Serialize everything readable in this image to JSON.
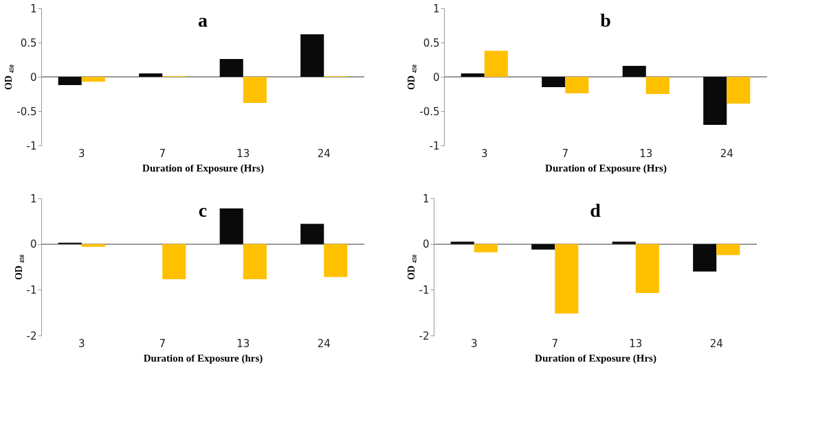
{
  "chart_data": [
    {
      "type": "bar",
      "title": "a",
      "xlabel": "Duration of Exposure (Hrs)",
      "ylabel": "OD ₄₅₀",
      "categories": [
        "3",
        "7",
        "13",
        "24"
      ],
      "ylim": [
        -1,
        1
      ],
      "yticks": [
        -1,
        -0.5,
        0,
        0.5,
        1
      ],
      "grid": false,
      "legend": false,
      "ref_lines": [
        {
          "axis": "y",
          "value": 0,
          "color": "#999999"
        }
      ],
      "series": [
        {
          "color": "#0a0a0a",
          "values": [
            -0.12,
            0.05,
            0.26,
            0.62
          ]
        },
        {
          "color": "#ffc000",
          "values": [
            -0.07,
            0.01,
            -0.38,
            0.01
          ]
        }
      ]
    },
    {
      "type": "bar",
      "title": "b",
      "xlabel": "Duration of Exposure (Hrs)",
      "ylabel": "OD ₄₅₀",
      "categories": [
        "3",
        "7",
        "13",
        "24"
      ],
      "ylim": [
        -1,
        1
      ],
      "yticks": [
        -1,
        -0.5,
        0,
        0.5,
        1
      ],
      "grid": false,
      "legend": false,
      "ref_lines": [
        {
          "axis": "y",
          "value": 0,
          "color": "#999999"
        }
      ],
      "series": [
        {
          "color": "#0a0a0a",
          "values": [
            0.05,
            -0.15,
            0.16,
            -0.7
          ]
        },
        {
          "color": "#ffc000",
          "values": [
            0.38,
            -0.24,
            -0.25,
            -0.39
          ]
        }
      ]
    },
    {
      "type": "bar",
      "title": "c",
      "xlabel": "Duration of Exposure (hrs)",
      "ylabel": "OD ₄₅₀",
      "categories": [
        "3",
        "7",
        "13",
        "24"
      ],
      "ylim": [
        -2,
        1
      ],
      "yticks": [
        -2,
        -1,
        0,
        1
      ],
      "grid": false,
      "legend": false,
      "ref_lines": [
        {
          "axis": "y",
          "value": 0,
          "color": "#999999"
        }
      ],
      "series": [
        {
          "color": "#0a0a0a",
          "values": [
            0.03,
            0.0,
            0.78,
            0.44
          ]
        },
        {
          "color": "#ffc000",
          "values": [
            -0.06,
            -0.77,
            -0.77,
            -0.72
          ]
        }
      ]
    },
    {
      "type": "bar",
      "title": "d",
      "xlabel": "Duration of Exposure (Hrs)",
      "ylabel": "OD ₄₅₀",
      "categories": [
        "3",
        "7",
        "13",
        "24"
      ],
      "ylim": [
        -2,
        1
      ],
      "yticks": [
        -2,
        -1,
        0,
        1
      ],
      "grid": false,
      "legend": false,
      "ref_lines": [
        {
          "axis": "y",
          "value": 0,
          "color": "#999999"
        }
      ],
      "series": [
        {
          "color": "#0a0a0a",
          "values": [
            0.05,
            -0.12,
            0.05,
            -0.6
          ]
        },
        {
          "color": "#ffc000",
          "values": [
            -0.18,
            -1.52,
            -1.07,
            -0.24
          ]
        }
      ]
    }
  ]
}
